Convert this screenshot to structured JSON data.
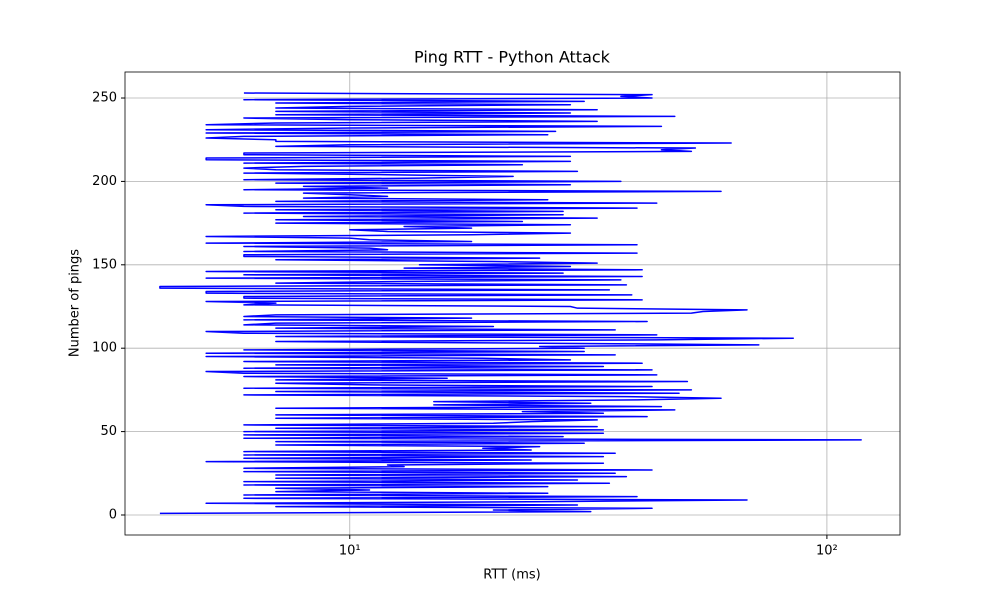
{
  "chart_data": {
    "type": "line",
    "title": "Ping RTT - Python Attack",
    "xlabel": "RTT (ms)",
    "ylabel": "Number of pings",
    "xscale": "log",
    "grid": true,
    "color": "#0000ff",
    "xlim": [
      3.38,
      142.3
    ],
    "ylim": [
      -12.0,
      265.6
    ],
    "xticks": [
      {
        "value": 10,
        "label": "10¹"
      },
      {
        "value": 100,
        "label": "10²"
      }
    ],
    "yticks": [
      0,
      50,
      100,
      150,
      200,
      250
    ],
    "x": [
      4,
      32,
      20,
      43,
      7,
      30,
      5,
      26,
      68,
      6,
      40,
      6,
      26,
      7,
      11,
      7,
      26,
      6,
      35,
      6,
      30,
      7,
      38,
      7,
      36,
      6,
      43,
      6,
      13,
      12,
      34,
      5,
      24,
      6,
      34,
      6,
      36,
      6,
      24,
      19,
      25,
      7,
      31,
      7,
      118,
      6,
      28,
      6,
      34,
      6,
      34,
      7,
      33,
      6,
      20,
      24,
      33,
      7,
      42,
      7,
      34,
      23,
      48,
      7,
      45,
      15,
      32,
      15,
      40,
      60,
      38,
      6,
      49,
      7,
      52,
      6,
      43,
      11,
      7,
      51,
      7,
      16,
      6,
      44,
      6,
      5,
      43,
      6,
      34,
      7,
      41,
      6,
      29,
      19,
      5,
      36,
      5,
      31,
      6,
      31,
      25,
      72,
      25,
      7,
      44,
      85,
      7,
      44,
      6,
      5,
      36,
      7,
      20,
      6,
      7,
      42,
      6,
      18,
      6,
      7,
      52,
      55,
      68,
      30,
      29,
      6,
      7,
      5,
      41,
      6,
      6,
      39,
      5,
      5,
      35,
      4,
      4,
      38,
      7,
      13,
      37,
      5,
      41,
      6,
      28,
      5,
      41,
      13,
      29,
      14,
      33,
      20,
      7,
      25,
      6,
      6,
      40,
      6,
      12,
      11,
      6,
      40,
      5,
      18,
      11,
      10,
      5,
      18,
      29,
      12,
      10,
      18,
      13,
      29,
      7,
      23,
      7,
      33,
      8,
      28,
      6,
      28,
      7,
      40,
      6,
      5,
      44,
      7,
      26,
      8,
      12,
      10,
      8,
      60,
      6,
      12,
      8,
      29,
      7,
      37,
      6,
      14,
      22,
      12,
      6,
      30,
      7,
      6,
      8,
      23,
      6,
      29,
      5,
      5,
      29,
      6,
      6,
      52,
      45,
      53,
      7,
      10,
      63,
      7,
      7,
      5,
      6,
      26,
      5,
      27,
      5,
      10,
      45,
      5,
      7,
      33,
      10,
      6,
      48,
      7,
      29,
      7,
      33,
      7,
      10,
      29,
      7,
      31,
      6,
      43,
      37,
      43,
      6
    ],
    "y": [
      1,
      2,
      3,
      4,
      5,
      6,
      7,
      8,
      9,
      10,
      11,
      12,
      13,
      14,
      15,
      16,
      17,
      18,
      19,
      20,
      21,
      22,
      23,
      24,
      25,
      26,
      27,
      28,
      29,
      30,
      31,
      32,
      33,
      34,
      35,
      36,
      37,
      38,
      39,
      40,
      41,
      42,
      43,
      44,
      45,
      46,
      47,
      48,
      49,
      50,
      51,
      52,
      53,
      54,
      55,
      56,
      57,
      58,
      59,
      60,
      61,
      62,
      63,
      64,
      65,
      66,
      67,
      68,
      69,
      70,
      71,
      72,
      73,
      74,
      75,
      76,
      77,
      78,
      79,
      80,
      81,
      82,
      83,
      84,
      85,
      86,
      87,
      88,
      89,
      90,
      91,
      92,
      93,
      94,
      95,
      96,
      97,
      98,
      99,
      100,
      101,
      102,
      103,
      104,
      105,
      106,
      107,
      108,
      109,
      110,
      111,
      112,
      113,
      114,
      115,
      116,
      117,
      118,
      119,
      120,
      121,
      122,
      123,
      124,
      125,
      126,
      127,
      128,
      129,
      130,
      131,
      132,
      133,
      134,
      135,
      136,
      137,
      138,
      139,
      140,
      141,
      142,
      143,
      144,
      145,
      146,
      147,
      148,
      149,
      150,
      151,
      152,
      153,
      154,
      155,
      156,
      157,
      158,
      159,
      160,
      161,
      162,
      163,
      164,
      165,
      166,
      167,
      168,
      169,
      170,
      171,
      172,
      173,
      174,
      175,
      176,
      177,
      178,
      179,
      180,
      181,
      182,
      183,
      184,
      185,
      186,
      187,
      188,
      189,
      190,
      191,
      192,
      193,
      194,
      195,
      196,
      197,
      198,
      199,
      200,
      201,
      202,
      203,
      204,
      205,
      206,
      207,
      208,
      209,
      210,
      211,
      212,
      213,
      214,
      215,
      216,
      217,
      218,
      219,
      220,
      221,
      222,
      223,
      224,
      225,
      226,
      227,
      228,
      229,
      230,
      231,
      232,
      233,
      234,
      235,
      236,
      237,
      238,
      239,
      240,
      241,
      242,
      243,
      244,
      245,
      246,
      247,
      248,
      249,
      250,
      251,
      252,
      253
    ]
  }
}
